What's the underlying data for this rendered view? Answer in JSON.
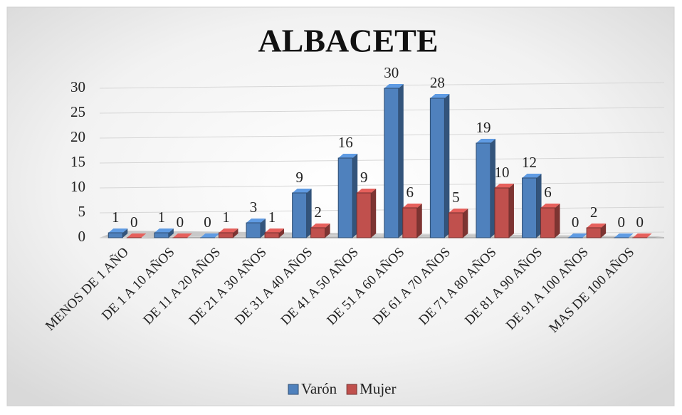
{
  "chart_data": {
    "type": "bar3d",
    "title": "ALBACETE",
    "categories": [
      "MENOS DE 1 AÑO",
      "DE 1 A 10 AÑOS",
      "DE 11 A 20 AÑOS",
      "DE 21 A 30 AÑOS",
      "DE 31 A 40 AÑOS",
      "DE 41 A 50 AÑOS",
      "DE 51 A 60 AÑOS",
      "DE 61 A 70 AÑOS",
      "DE 71 A 80 AÑOS",
      "DE 81 A 90 AÑOS",
      "DE 91 A 100 AÑOS",
      "MAS DE 100 AÑOS"
    ],
    "series": [
      {
        "name": "Varón",
        "color": "#4f81bd",
        "values": [
          1,
          1,
          0,
          3,
          9,
          16,
          30,
          28,
          19,
          12,
          0,
          0
        ]
      },
      {
        "name": "Mujer",
        "color": "#c0504d",
        "values": [
          0,
          0,
          1,
          1,
          2,
          9,
          6,
          5,
          10,
          6,
          2,
          0
        ]
      }
    ],
    "ylim": [
      0,
      30
    ],
    "yticks": [
      0,
      5,
      10,
      15,
      20,
      25,
      30
    ],
    "grid": true,
    "legend": "bottom"
  }
}
